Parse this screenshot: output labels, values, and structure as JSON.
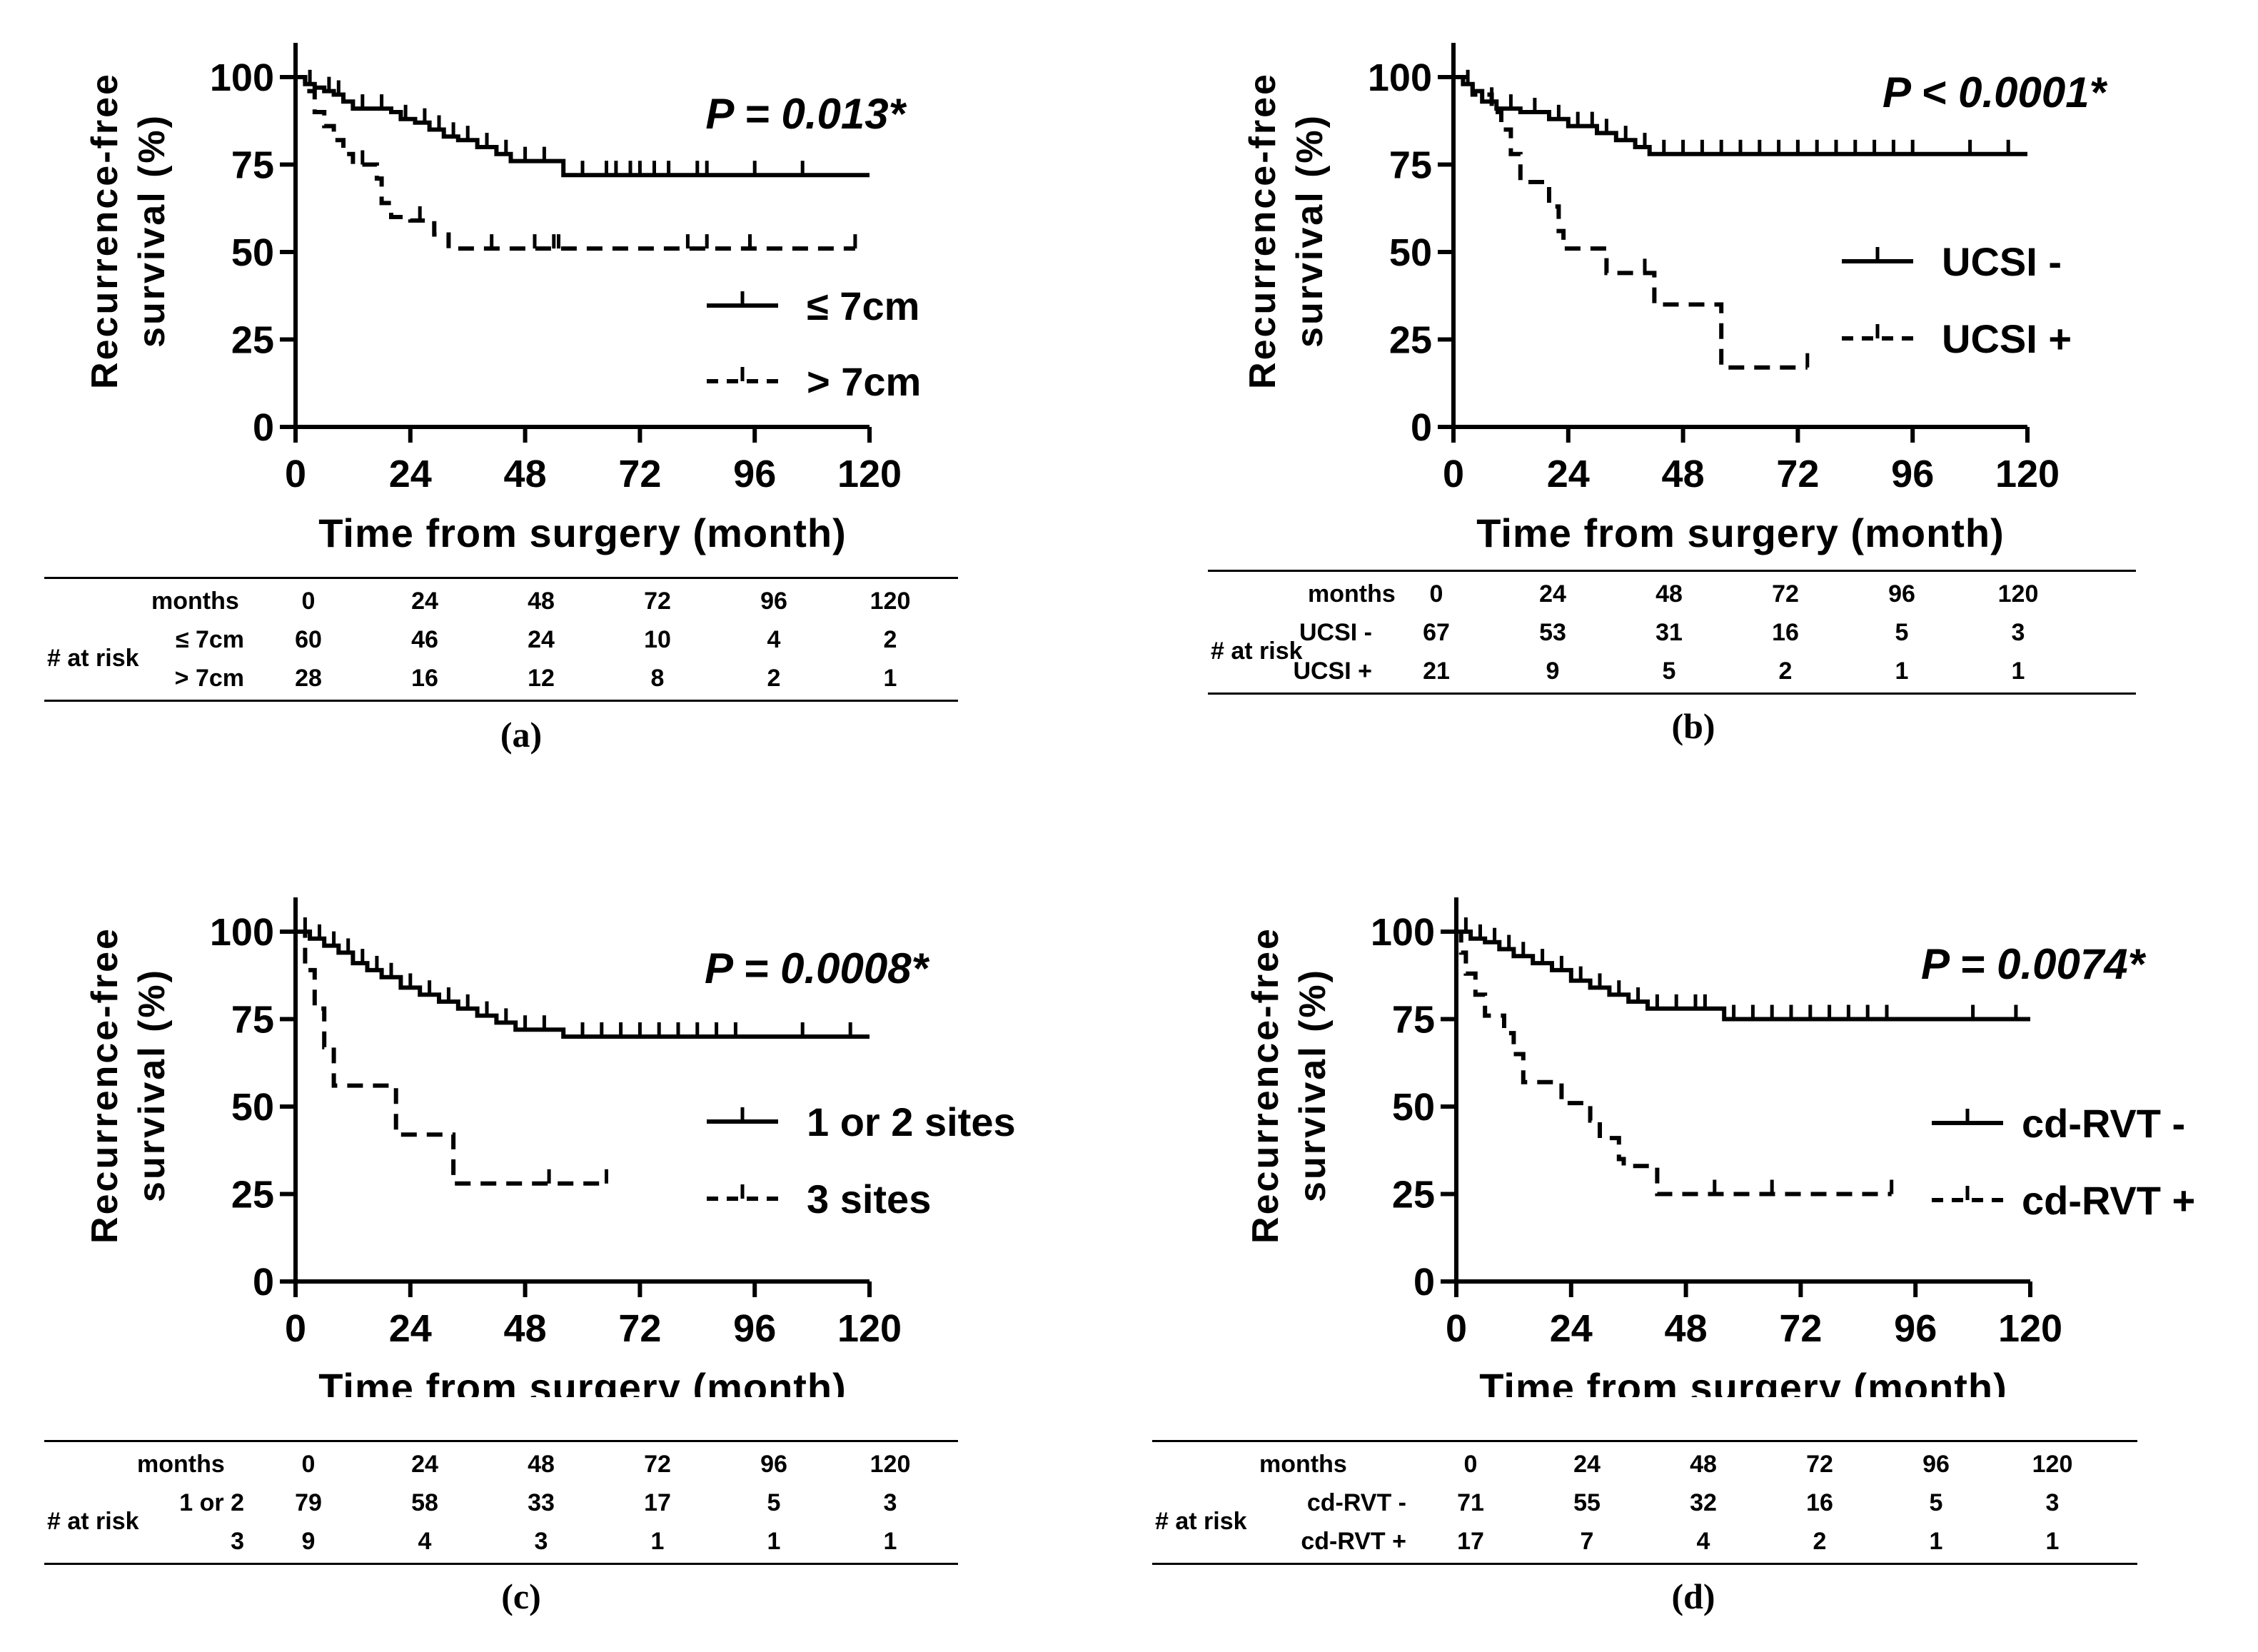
{
  "chart_data": [
    {
      "type": "line",
      "panel": "(a)",
      "ylabel_line1": "Recurrence-free",
      "ylabel_line2": "survival (%)",
      "xlabel": "Time from surgery (month)",
      "ylim": [
        0,
        100
      ],
      "xlim": [
        0,
        120
      ],
      "xticks": [
        0,
        24,
        48,
        72,
        96,
        120
      ],
      "yticks": [
        0,
        25,
        50,
        75,
        100
      ],
      "p_value": "P = 0.013*",
      "legend_position": "right",
      "series": [
        {
          "name": "≤ 7cm",
          "style": "solid",
          "steps": [
            [
              0,
              100
            ],
            [
              2,
              98
            ],
            [
              4,
              97
            ],
            [
              6,
              96
            ],
            [
              8,
              95
            ],
            [
              10,
              93
            ],
            [
              12,
              91
            ],
            [
              16,
              91
            ],
            [
              20,
              90
            ],
            [
              22,
              88
            ],
            [
              25,
              87
            ],
            [
              28,
              85
            ],
            [
              31,
              83
            ],
            [
              34,
              82
            ],
            [
              38,
              80
            ],
            [
              42,
              78
            ],
            [
              45,
              76
            ],
            [
              50,
              76
            ],
            [
              56,
              72
            ],
            [
              120,
              72
            ]
          ],
          "censor": [
            3,
            7,
            9,
            14,
            18,
            23,
            27,
            30,
            33,
            36,
            40,
            44,
            48,
            52,
            60,
            65,
            67,
            70,
            72,
            75,
            78,
            84,
            86,
            96,
            106
          ]
        },
        {
          "name": "> 7cm",
          "style": "dashed",
          "steps": [
            [
              0,
              100
            ],
            [
              2,
              96
            ],
            [
              4,
              90
            ],
            [
              6,
              86
            ],
            [
              8,
              82
            ],
            [
              10,
              78
            ],
            [
              12,
              75
            ],
            [
              17,
              71
            ],
            [
              18,
              64
            ],
            [
              20,
              60
            ],
            [
              24,
              59
            ],
            [
              29,
              55
            ],
            [
              32,
              51
            ],
            [
              117,
              51
            ]
          ],
          "censor": [
            14,
            26,
            41,
            50,
            54,
            55,
            82,
            86,
            95,
            117
          ]
        }
      ],
      "risk_table": {
        "months_label": "months",
        "at_risk_label": "# at risk",
        "months": [
          "0",
          "24",
          "48",
          "72",
          "96",
          "120"
        ],
        "rows": [
          {
            "label": "≤ 7cm",
            "values": [
              "60",
              "46",
              "24",
              "10",
              "4",
              "2"
            ]
          },
          {
            "label": "> 7cm",
            "values": [
              "28",
              "16",
              "12",
              "8",
              "2",
              "1"
            ]
          }
        ]
      }
    },
    {
      "type": "line",
      "panel": "(b)",
      "ylabel_line1": "Recurrence-free",
      "ylabel_line2": "survival (%)",
      "xlabel": "Time from surgery (month)",
      "ylim": [
        0,
        100
      ],
      "xlim": [
        0,
        120
      ],
      "xticks": [
        0,
        24,
        48,
        72,
        96,
        120
      ],
      "yticks": [
        0,
        25,
        50,
        75,
        100
      ],
      "p_value": "P < 0.0001*",
      "legend_position": "right",
      "series": [
        {
          "name": "UCSI -",
          "style": "solid",
          "steps": [
            [
              0,
              100
            ],
            [
              2,
              98
            ],
            [
              4,
              96
            ],
            [
              6,
              93
            ],
            [
              9,
              91
            ],
            [
              14,
              90
            ],
            [
              20,
              88
            ],
            [
              24,
              86
            ],
            [
              30,
              84
            ],
            [
              34,
              82
            ],
            [
              38,
              80
            ],
            [
              41,
              78
            ],
            [
              120,
              78
            ]
          ],
          "censor": [
            3,
            8,
            12,
            17,
            22,
            26,
            29,
            32,
            36,
            40,
            44,
            48,
            52,
            56,
            60,
            64,
            68,
            72,
            76,
            80,
            84,
            88,
            92,
            96,
            108,
            116
          ]
        },
        {
          "name": "UCSI +",
          "style": "dashed",
          "steps": [
            [
              0,
              100
            ],
            [
              4,
              95
            ],
            [
              8,
              90
            ],
            [
              10,
              85
            ],
            [
              12,
              78
            ],
            [
              14,
              70
            ],
            [
              19,
              70
            ],
            [
              20,
              63
            ],
            [
              22,
              56
            ],
            [
              23,
              51
            ],
            [
              31,
              51
            ],
            [
              32,
              44
            ],
            [
              42,
              44
            ],
            [
              42,
              35
            ],
            [
              56,
              35
            ],
            [
              56,
              17
            ],
            [
              74,
              17
            ]
          ],
          "censor": [
            40,
            74
          ]
        }
      ],
      "risk_table": {
        "months_label": "months",
        "at_risk_label": "# at risk",
        "months": [
          "0",
          "24",
          "48",
          "72",
          "96",
          "120"
        ],
        "rows": [
          {
            "label": "UCSI -",
            "values": [
              "67",
              "53",
              "31",
              "16",
              "5",
              "3"
            ]
          },
          {
            "label": "UCSI +",
            "values": [
              "21",
              "9",
              "5",
              "2",
              "1",
              "1"
            ]
          }
        ]
      }
    },
    {
      "type": "line",
      "panel": "(c)",
      "ylabel_line1": "Recurrence-free",
      "ylabel_line2": "survival (%)",
      "xlabel": "Time from surgery (month)",
      "ylim": [
        0,
        100
      ],
      "xlim": [
        0,
        120
      ],
      "xticks": [
        0,
        24,
        48,
        72,
        96,
        120
      ],
      "yticks": [
        0,
        25,
        50,
        75,
        100
      ],
      "p_value": "P = 0.0008*",
      "legend_position": "right",
      "series": [
        {
          "name": "1 or 2 sites",
          "style": "solid",
          "steps": [
            [
              0,
              100
            ],
            [
              3,
              98
            ],
            [
              6,
              96
            ],
            [
              9,
              94
            ],
            [
              12,
              91
            ],
            [
              15,
              89
            ],
            [
              18,
              87
            ],
            [
              22,
              84
            ],
            [
              26,
              82
            ],
            [
              30,
              80
            ],
            [
              34,
              78
            ],
            [
              38,
              76
            ],
            [
              42,
              74
            ],
            [
              46,
              72
            ],
            [
              56,
              70
            ],
            [
              120,
              70
            ]
          ],
          "censor": [
            2,
            5,
            8,
            11,
            14,
            17,
            20,
            24,
            28,
            32,
            36,
            40,
            44,
            48,
            52,
            60,
            64,
            68,
            72,
            76,
            80,
            84,
            88,
            92,
            106,
            116
          ]
        },
        {
          "name": "3 sites",
          "style": "dashed",
          "steps": [
            [
              0,
              100
            ],
            [
              2,
              89
            ],
            [
              4,
              78
            ],
            [
              6,
              67
            ],
            [
              8,
              56
            ],
            [
              20,
              56
            ],
            [
              21,
              42
            ],
            [
              33,
              42
            ],
            [
              33,
              28
            ],
            [
              65,
              28
            ]
          ],
          "censor": [
            53,
            65
          ]
        }
      ],
      "risk_table": {
        "months_label": "months",
        "at_risk_label": "# at risk",
        "months": [
          "0",
          "24",
          "48",
          "72",
          "96",
          "120"
        ],
        "rows": [
          {
            "label": "1 or 2",
            "values": [
              "79",
              "58",
              "33",
              "17",
              "5",
              "3"
            ]
          },
          {
            "label": "3",
            "values": [
              "9",
              "4",
              "3",
              "1",
              "1",
              "1"
            ]
          }
        ]
      }
    },
    {
      "type": "line",
      "panel": "(d)",
      "ylabel_line1": "Recurrence-free",
      "ylabel_line2": "survival (%)",
      "xlabel": "Time from surgery (month)",
      "ylim": [
        0,
        100
      ],
      "xlim": [
        0,
        120
      ],
      "xticks": [
        0,
        24,
        48,
        72,
        96,
        120
      ],
      "yticks": [
        0,
        25,
        50,
        75,
        100
      ],
      "p_value": "P = 0.0074*",
      "legend_position": "right",
      "series": [
        {
          "name": "cd-RVT -",
          "style": "solid",
          "steps": [
            [
              0,
              100
            ],
            [
              3,
              98
            ],
            [
              6,
              97
            ],
            [
              9,
              95
            ],
            [
              12,
              93
            ],
            [
              16,
              91
            ],
            [
              20,
              89
            ],
            [
              24,
              86
            ],
            [
              28,
              84
            ],
            [
              32,
              82
            ],
            [
              36,
              80
            ],
            [
              40,
              78
            ],
            [
              56,
              75
            ],
            [
              120,
              75
            ]
          ],
          "censor": [
            2,
            5,
            8,
            11,
            14,
            18,
            22,
            26,
            30,
            34,
            38,
            42,
            46,
            50,
            52,
            58,
            62,
            66,
            70,
            74,
            78,
            82,
            86,
            90,
            108,
            117
          ]
        },
        {
          "name": "cd-RVT +",
          "style": "dashed",
          "steps": [
            [
              0,
              100
            ],
            [
              1,
              94
            ],
            [
              2,
              88
            ],
            [
              4,
              82
            ],
            [
              6,
              76
            ],
            [
              10,
              71
            ],
            [
              12,
              65
            ],
            [
              14,
              57
            ],
            [
              20,
              57
            ],
            [
              22,
              51
            ],
            [
              28,
              46
            ],
            [
              30,
              41
            ],
            [
              34,
              35
            ],
            [
              35,
              33
            ],
            [
              40,
              33
            ],
            [
              42,
              25
            ],
            [
              91,
              25
            ]
          ],
          "censor": [
            54,
            66,
            91
          ]
        }
      ],
      "risk_table": {
        "months_label": "months",
        "at_risk_label": "# at risk",
        "months": [
          "0",
          "24",
          "48",
          "72",
          "96",
          "120"
        ],
        "rows": [
          {
            "label": "cd-RVT -",
            "values": [
              "71",
              "55",
              "32",
              "16",
              "5",
              "3"
            ]
          },
          {
            "label": "cd-RVT +",
            "values": [
              "17",
              "7",
              "4",
              "2",
              "1",
              "1"
            ]
          }
        ]
      }
    }
  ]
}
